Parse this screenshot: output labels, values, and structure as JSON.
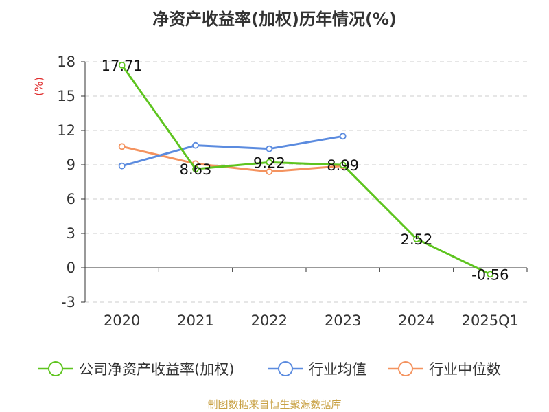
{
  "title": "净资产收益率(加权)历年情况(%)",
  "source": "制图数据来自恒生聚源数据库",
  "chart_data": {
    "type": "line",
    "title": "净资产收益率(加权)历年情况(%)",
    "ylabel": "(%)",
    "xlabel": "",
    "ylim": [
      -3,
      18
    ],
    "yticks": [
      "-3",
      "0",
      "3",
      "6",
      "9",
      "12",
      "15",
      "18"
    ],
    "categories": [
      "2020",
      "2021",
      "2022",
      "2023",
      "2024",
      "2025Q1"
    ],
    "grid": true,
    "legend_position": "bottom",
    "series": [
      {
        "name": "公司净资产收益率(加权)",
        "color": "#5ec41f",
        "values": [
          17.71,
          8.63,
          9.22,
          8.99,
          2.52,
          -0.56
        ],
        "labels": [
          "17.71",
          "8.63",
          "9.22",
          "8.99",
          "2.52",
          "-0.56"
        ]
      },
      {
        "name": "行业均值",
        "color": "#5b8bdf",
        "values": [
          8.9,
          10.7,
          10.4,
          11.5,
          null,
          null
        ]
      },
      {
        "name": "行业中位数",
        "color": "#f4935f",
        "values": [
          10.6,
          9.1,
          8.4,
          8.9,
          null,
          null
        ]
      }
    ],
    "colors": {
      "axis": "#333333",
      "grid": "#cccccc",
      "unit": "#e03030"
    }
  }
}
